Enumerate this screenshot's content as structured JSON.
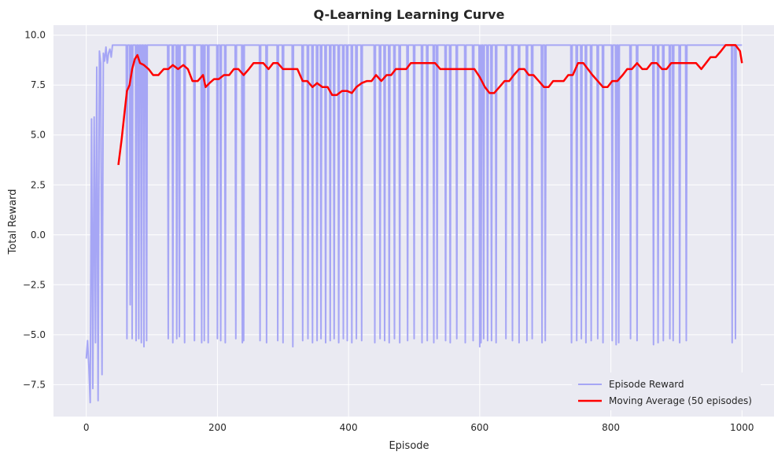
{
  "chart_data": {
    "type": "line",
    "title": "Q-Learning Learning Curve",
    "xlabel": "Episode",
    "ylabel": "Total Reward",
    "xlim": [
      -50,
      1050
    ],
    "ylim": [
      -9.1,
      10.5
    ],
    "xticks": [
      0,
      200,
      400,
      600,
      800,
      1000
    ],
    "xtick_labels": [
      "0",
      "200",
      "400",
      "600",
      "800",
      "1000"
    ],
    "yticks": [
      -7.5,
      -5.0,
      -2.5,
      0.0,
      2.5,
      5.0,
      7.5,
      10.0
    ],
    "ytick_labels": [
      "−7.5",
      "−5.0",
      "−2.5",
      "0.0",
      "2.5",
      "5.0",
      "7.5",
      "10.0"
    ],
    "grid": true,
    "legend_position": "lower-right",
    "series": [
      {
        "name": "Episode Reward",
        "color": "#a6a6f5",
        "baseline": 9.5,
        "early_x": [
          0,
          2,
          4,
          6,
          8,
          10,
          12,
          14,
          16,
          18,
          20,
          22,
          24,
          26,
          28,
          30,
          32,
          34,
          36,
          38,
          40,
          44,
          48
        ],
        "early_y": [
          -6.2,
          -5.3,
          -6.6,
          -8.4,
          5.8,
          -7.7,
          5.9,
          -5.4,
          8.4,
          -8.3,
          9.2,
          8.6,
          -7.0,
          9.1,
          8.7,
          9.4,
          8.6,
          9.1,
          9.3,
          8.9,
          9.5,
          9.5,
          9.5
        ],
        "dips_x": [
          62,
          67,
          70,
          76,
          80,
          84,
          88,
          92,
          125,
          132,
          138,
          142,
          150,
          165,
          176,
          180,
          186,
          200,
          205,
          212,
          228,
          238,
          240,
          265,
          275,
          292,
          300,
          315,
          330,
          338,
          345,
          352,
          358,
          365,
          372,
          378,
          385,
          392,
          398,
          405,
          412,
          420,
          440,
          448,
          455,
          462,
          470,
          478,
          490,
          500,
          512,
          520,
          530,
          535,
          548,
          555,
          565,
          578,
          590,
          600,
          602,
          606,
          612,
          618,
          625,
          640,
          650,
          660,
          672,
          680,
          695,
          700,
          740,
          748,
          755,
          762,
          770,
          780,
          788,
          802,
          808,
          812,
          830,
          840,
          865,
          872,
          880,
          890,
          895,
          905,
          915,
          985,
          990
        ],
        "dips_y": [
          -5.2,
          -3.5,
          -5.2,
          -5.3,
          -5.2,
          -5.4,
          -5.6,
          -5.3,
          -5.2,
          -5.4,
          -5.2,
          -5.1,
          -5.4,
          -5.3,
          -5.4,
          -5.3,
          -5.4,
          -5.2,
          -5.3,
          -5.4,
          -5.2,
          -5.4,
          -5.3,
          -5.3,
          -5.4,
          -5.3,
          -5.4,
          -5.6,
          -5.3,
          -5.2,
          -5.4,
          -5.3,
          -5.2,
          -5.4,
          -5.3,
          -5.2,
          -5.4,
          -5.2,
          -5.3,
          -5.4,
          -5.2,
          -5.3,
          -5.4,
          -5.2,
          -5.3,
          -5.4,
          -5.2,
          -5.4,
          -5.3,
          -5.2,
          -5.4,
          -5.3,
          -5.4,
          -5.2,
          -5.3,
          -5.4,
          -5.2,
          -5.4,
          -5.3,
          -5.6,
          -5.4,
          -5.2,
          -5.3,
          -5.3,
          -5.4,
          -5.2,
          -5.3,
          -5.4,
          -5.3,
          -5.2,
          -5.4,
          -5.3,
          -5.4,
          -5.3,
          -5.2,
          -5.4,
          -5.3,
          -5.2,
          -5.4,
          -5.3,
          -5.5,
          -5.4,
          -5.2,
          -5.3,
          -5.5,
          -5.4,
          -5.3,
          -5.2,
          -5.3,
          -5.4,
          -5.3,
          -5.4,
          -5.2
        ]
      },
      {
        "name": "Moving Average (50 episodes)",
        "color": "#ff0000",
        "x": [
          49,
          54,
          58,
          62,
          66,
          70,
          74,
          78,
          82,
          88,
          95,
          102,
          110,
          118,
          125,
          132,
          140,
          148,
          155,
          162,
          170,
          178,
          182,
          188,
          195,
          202,
          210,
          218,
          225,
          232,
          240,
          248,
          255,
          262,
          270,
          278,
          285,
          292,
          300,
          308,
          315,
          322,
          330,
          337,
          345,
          352,
          360,
          368,
          375,
          382,
          390,
          398,
          405,
          412,
          420,
          428,
          435,
          442,
          450,
          458,
          465,
          472,
          480,
          488,
          495,
          502,
          510,
          518,
          525,
          532,
          540,
          548,
          555,
          562,
          570,
          578,
          585,
          592,
          600,
          608,
          615,
          622,
          630,
          638,
          645,
          652,
          660,
          668,
          675,
          682,
          690,
          698,
          705,
          712,
          720,
          728,
          735,
          742,
          750,
          758,
          765,
          772,
          780,
          788,
          795,
          802,
          810,
          818,
          825,
          832,
          840,
          848,
          855,
          862,
          870,
          878,
          885,
          892,
          900,
          908,
          915,
          922,
          930,
          938,
          945,
          952,
          960,
          968,
          975,
          982,
          990,
          997,
          1000
        ],
        "y": [
          3.5,
          4.8,
          6.0,
          7.2,
          7.5,
          8.3,
          8.8,
          9.0,
          8.6,
          8.5,
          8.3,
          8.0,
          8.0,
          8.3,
          8.3,
          8.5,
          8.3,
          8.5,
          8.3,
          7.7,
          7.7,
          8.0,
          7.4,
          7.6,
          7.8,
          7.8,
          8.0,
          8.0,
          8.3,
          8.3,
          8.0,
          8.3,
          8.6,
          8.6,
          8.6,
          8.3,
          8.6,
          8.6,
          8.3,
          8.3,
          8.3,
          8.3,
          7.7,
          7.7,
          7.4,
          7.6,
          7.4,
          7.4,
          7.0,
          7.0,
          7.2,
          7.2,
          7.1,
          7.4,
          7.6,
          7.7,
          7.7,
          8.0,
          7.7,
          8.0,
          8.0,
          8.3,
          8.3,
          8.3,
          8.6,
          8.6,
          8.6,
          8.6,
          8.6,
          8.6,
          8.3,
          8.3,
          8.3,
          8.3,
          8.3,
          8.3,
          8.3,
          8.3,
          7.9,
          7.4,
          7.1,
          7.1,
          7.4,
          7.7,
          7.7,
          8.0,
          8.3,
          8.3,
          8.0,
          8.0,
          7.7,
          7.4,
          7.4,
          7.7,
          7.7,
          7.7,
          8.0,
          8.0,
          8.6,
          8.6,
          8.3,
          8.0,
          7.7,
          7.4,
          7.4,
          7.7,
          7.7,
          8.0,
          8.3,
          8.3,
          8.6,
          8.3,
          8.3,
          8.6,
          8.6,
          8.3,
          8.3,
          8.6,
          8.6,
          8.6,
          8.6,
          8.6,
          8.6,
          8.3,
          8.6,
          8.9,
          8.9,
          9.2,
          9.5,
          9.5,
          9.5,
          9.2,
          8.6
        ]
      }
    ]
  }
}
